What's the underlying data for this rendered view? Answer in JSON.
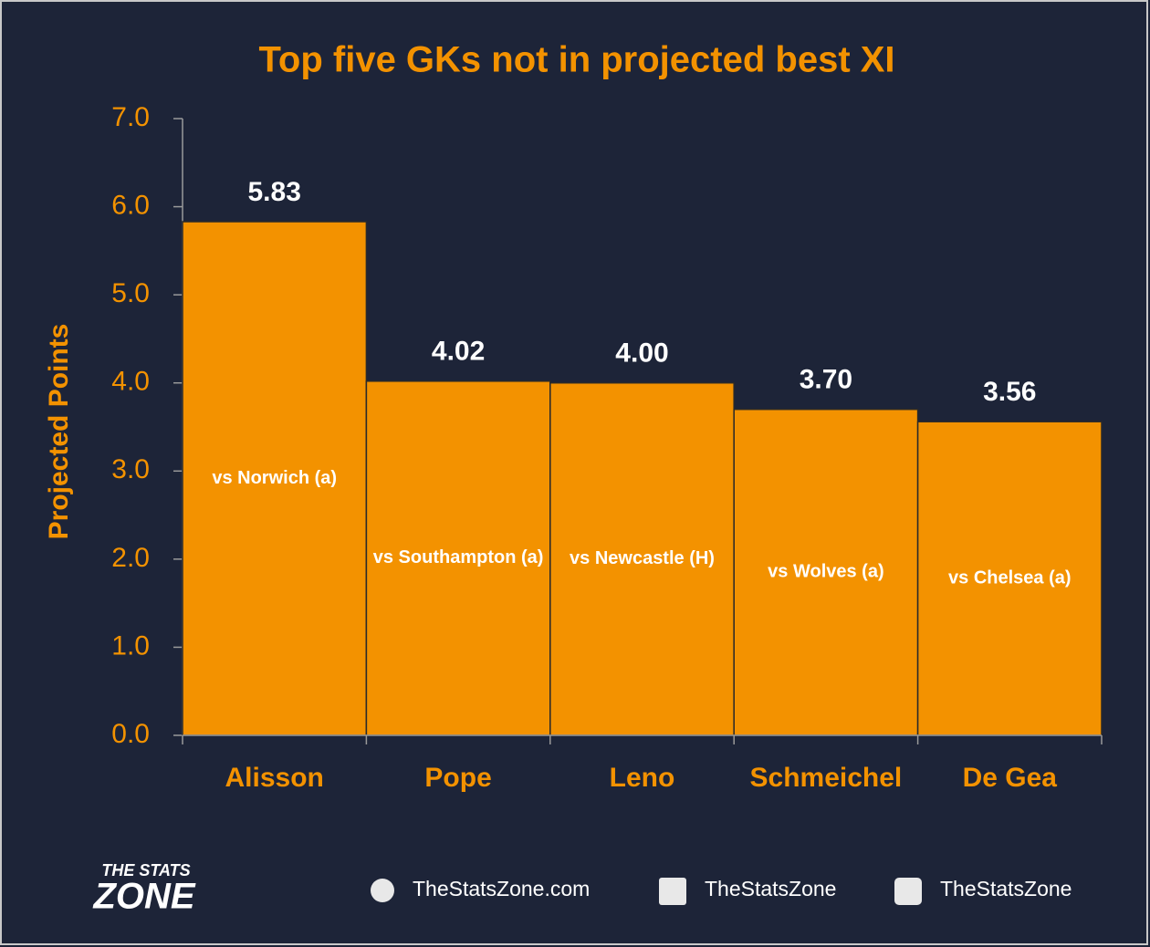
{
  "chart_data": {
    "type": "bar",
    "title": "Top five GKs not in projected best XI",
    "y_label": "Projected Points",
    "categories": [
      "Alisson",
      "Pope",
      "Leno",
      "Schmeichel",
      "De Gea"
    ],
    "values": [
      5.83,
      4.02,
      4.0,
      3.7,
      3.56
    ],
    "value_labels": [
      "5.83",
      "4.02",
      "4.00",
      "3.70",
      "3.56"
    ],
    "annotations": [
      "vs Norwich (a)",
      "vs Southampton (a)",
      "vs Newcastle (H)",
      "vs Wolves (a)",
      "vs Chelsea (a)"
    ],
    "color": "#f39200",
    "ylim": [
      0,
      7
    ],
    "yticks": [
      {
        "value": 0,
        "label": "0.0"
      },
      {
        "value": 1,
        "label": "1.0"
      },
      {
        "value": 2,
        "label": "2.0"
      },
      {
        "value": 3,
        "label": "3.0"
      },
      {
        "value": 4,
        "label": "4.0"
      },
      {
        "value": 5,
        "label": "5.0"
      },
      {
        "value": 6,
        "label": "6.0"
      },
      {
        "value": 7,
        "label": "7.0"
      }
    ],
    "grid": false
  },
  "footer": {
    "logo_top": "THE STATS",
    "logo_bottom": "ZONE",
    "website": "TheStatsZone.com",
    "facebook": "TheStatsZone",
    "twitter": "TheStatsZone"
  }
}
